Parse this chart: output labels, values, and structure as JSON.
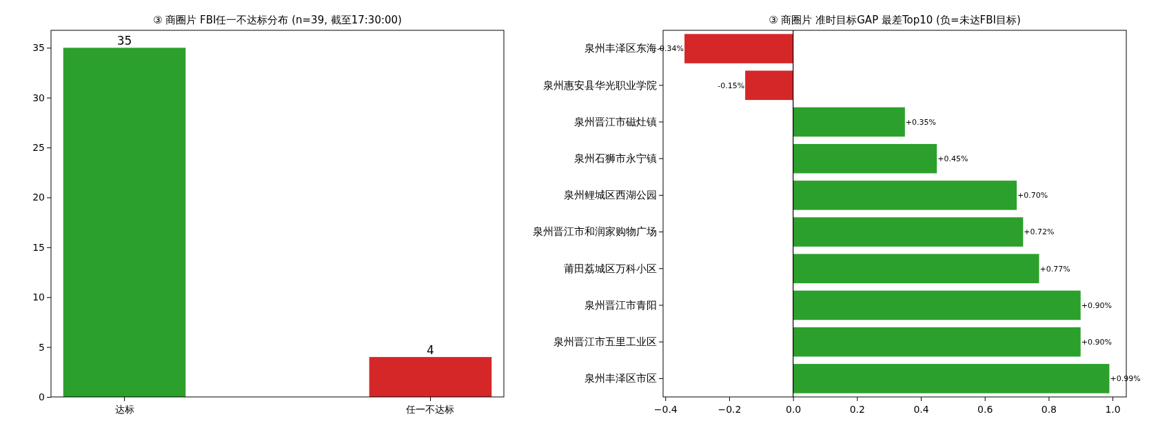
{
  "chart_data": [
    {
      "type": "bar",
      "title": "③ 商圈片 FBI任一不达标分布 (n=39, 截至17:30:00)",
      "categories": [
        "达标",
        "任一不达标"
      ],
      "values": [
        35,
        4
      ],
      "colors": [
        "#2ca02c",
        "#d62728"
      ],
      "ylim": [
        0,
        36.75
      ],
      "yticks": [
        0,
        5,
        10,
        15,
        20,
        25,
        30,
        35
      ],
      "data_labels": true
    },
    {
      "type": "bar",
      "orientation": "horizontal",
      "title": "③ 商圈片 准时目标GAP 最差Top10 (负=未达FBI目标)",
      "categories": [
        "泉州丰泽区东海",
        "泉州惠安县华光职业学院",
        "泉州晋江市磁灶镇",
        "泉州石狮市永宁镇",
        "泉州鲤城区西湖公园",
        "泉州晋江市和润家购物广场",
        "莆田荔城区万科小区",
        "泉州晋江市青阳",
        "泉州晋江市五里工业区",
        "泉州丰泽区市区"
      ],
      "values": [
        -0.34,
        -0.15,
        0.35,
        0.45,
        0.7,
        0.72,
        0.77,
        0.9,
        0.9,
        0.99
      ],
      "value_labels": [
        "-0.34%",
        "-0.15%",
        "+0.35%",
        "+0.45%",
        "+0.70%",
        "+0.72%",
        "+0.77%",
        "+0.90%",
        "+0.90%",
        "+0.99%"
      ],
      "colors": [
        "#d62728",
        "#d62728",
        "#2ca02c",
        "#2ca02c",
        "#2ca02c",
        "#2ca02c",
        "#2ca02c",
        "#2ca02c",
        "#2ca02c",
        "#2ca02c"
      ],
      "xlim": [
        -0.407,
        1.043
      ],
      "xticks": [
        {
          "value": -0.4,
          "label": "−0.4"
        },
        {
          "value": -0.2,
          "label": "−0.2"
        },
        {
          "value": 0,
          "label": "0.0"
        },
        {
          "value": 0.2,
          "label": "0.2"
        },
        {
          "value": 0.4,
          "label": "0.4"
        },
        {
          "value": 0.6,
          "label": "0.6"
        },
        {
          "value": 0.8,
          "label": "0.8"
        },
        {
          "value": 1,
          "label": "1.0"
        }
      ],
      "ref_lines": [
        {
          "axis": "x",
          "value": 0,
          "color": "#000000"
        }
      ]
    }
  ]
}
